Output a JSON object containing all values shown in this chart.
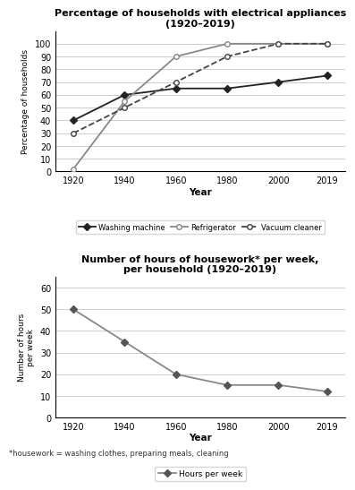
{
  "years": [
    1920,
    1940,
    1960,
    1980,
    2000,
    2019
  ],
  "washing_machine": [
    40,
    60,
    65,
    65,
    70,
    75
  ],
  "refrigerator": [
    2,
    55,
    90,
    100,
    100,
    100
  ],
  "vacuum_cleaner": [
    30,
    50,
    70,
    90,
    100,
    100
  ],
  "hours_per_week": [
    50,
    35,
    20,
    15,
    15,
    12
  ],
  "chart1_title": "Percentage of households with electrical appliances\n(1920–2019)",
  "chart1_ylabel": "Percentage of households",
  "chart1_xlabel": "Year",
  "chart1_ylim": [
    0,
    110
  ],
  "chart1_yticks": [
    0,
    10,
    20,
    30,
    40,
    50,
    60,
    70,
    80,
    90,
    100
  ],
  "chart2_title": "Number of hours of housework* per week,\nper household (1920–2019)",
  "chart2_ylabel": "Number of hours\nper week",
  "chart2_xlabel": "Year",
  "chart2_ylim": [
    0,
    65
  ],
  "chart2_yticks": [
    0,
    10,
    20,
    30,
    40,
    50,
    60
  ],
  "footnote": "*housework = washing clothes, preparing meals, cleaning",
  "bg_color": "#ffffff"
}
